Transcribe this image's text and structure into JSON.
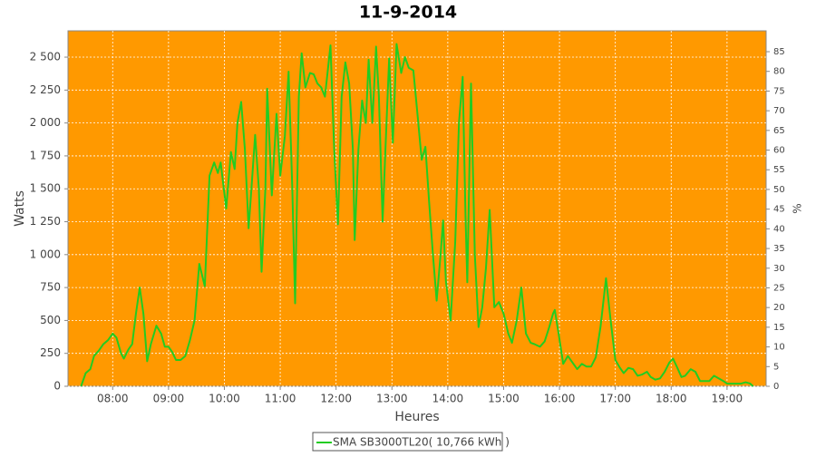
{
  "chart_data": {
    "type": "line",
    "title": "11-9-2014",
    "x_label": "Heures",
    "y_label": "Watts",
    "y2_label": "%",
    "xlim": [
      "07:12",
      "19:42"
    ],
    "xticks": [
      "08:00",
      "09:00",
      "10:00",
      "11:00",
      "12:00",
      "13:00",
      "14:00",
      "15:00",
      "16:00",
      "17:00",
      "18:00",
      "19:00"
    ],
    "ylim": [
      0,
      2700
    ],
    "yticks": [
      0,
      250,
      500,
      750,
      {
        "value": 1000,
        "label": "1 000"
      },
      {
        "value": 1250,
        "label": "1 250"
      },
      {
        "value": 1500,
        "label": "1 500"
      },
      {
        "value": 1750,
        "label": "1 750"
      },
      {
        "value": 2000,
        "label": "2 000"
      },
      {
        "value": 2250,
        "label": "2 250"
      },
      {
        "value": 2500,
        "label": "2 500"
      }
    ],
    "y2lim": [
      0,
      90.3
    ],
    "y2ticks": [
      0,
      5,
      10,
      15,
      20,
      25,
      30,
      35,
      40,
      45,
      50,
      55,
      60,
      65,
      70,
      75,
      80,
      85
    ],
    "grid": true,
    "legend": "bottom",
    "x": [
      "07:26",
      "07:31",
      "07:36",
      "07:40",
      "07:45",
      "07:50",
      "07:55",
      "08:00",
      "08:04",
      "08:09",
      "08:12",
      "08:17",
      "08:21",
      "08:25",
      "08:29",
      "08:33",
      "08:37",
      "08:41",
      "08:47",
      "08:52",
      "08:56",
      "09:00",
      "09:04",
      "09:08",
      "09:13",
      "09:18",
      "09:23",
      "09:28",
      "09:33",
      "09:39",
      "09:44",
      "09:49",
      "09:53",
      "09:56",
      "10:02",
      "10:07",
      "10:11",
      "10:14",
      "10:18",
      "10:22",
      "10:26",
      "10:29",
      "10:33",
      "10:37",
      "10:40",
      "10:44",
      "10:46",
      "10:51",
      "10:56",
      "11:00",
      "11:05",
      "11:09",
      "11:13",
      "11:16",
      "11:20",
      "11:23",
      "11:27",
      "11:32",
      "11:36",
      "11:40",
      "11:44",
      "11:48",
      "11:54",
      "11:58",
      "12:02",
      "12:06",
      "12:10",
      "12:14",
      "12:18",
      "12:20",
      "12:24",
      "12:28",
      "12:32",
      "12:35",
      "12:39",
      "12:43",
      "12:46",
      "12:50",
      "12:53",
      "12:57",
      "13:01",
      "13:05",
      "13:10",
      "13:14",
      "13:18",
      "13:23",
      "13:27",
      "13:32",
      "13:36",
      "13:40",
      "13:44",
      "13:48",
      "13:52",
      "13:55",
      "13:58",
      "14:03",
      "14:08",
      "14:12",
      "14:16",
      "14:19",
      "14:21",
      "14:25",
      "14:29",
      "14:33",
      "14:37",
      "14:41",
      "14:45",
      "14:50",
      "14:55",
      "15:00",
      "15:05",
      "15:09",
      "15:14",
      "15:19",
      "15:24",
      "15:29",
      "15:33",
      "15:39",
      "15:44",
      "15:49",
      "15:53",
      "15:55",
      "15:59",
      "16:04",
      "16:09",
      "16:14",
      "16:19",
      "16:24",
      "16:29",
      "16:34",
      "16:39",
      "16:44",
      "16:50",
      "16:55",
      "17:00",
      "17:05",
      "17:09",
      "17:14",
      "17:19",
      "17:24",
      "17:29",
      "17:34",
      "17:38",
      "17:43",
      "17:48",
      "17:53",
      "17:58",
      "18:02",
      "18:06",
      "18:11",
      "18:15",
      "18:21",
      "18:26",
      "18:31",
      "18:36",
      "18:41",
      "18:46",
      "18:51",
      "18:56",
      "19:00",
      "19:05",
      "19:10",
      "19:15",
      "19:20",
      "19:25",
      "19:28"
    ],
    "series": [
      {
        "name": "SMA SB3000TL20( 10,766 kWh )",
        "color": "#22cc22",
        "values": [
          0,
          100,
          130,
          230,
          270,
          320,
          350,
          400,
          370,
          250,
          210,
          280,
          320,
          550,
          750,
          550,
          190,
          320,
          460,
          400,
          300,
          300,
          260,
          200,
          200,
          230,
          350,
          500,
          930,
          760,
          1600,
          1700,
          1620,
          1700,
          1350,
          1780,
          1650,
          2000,
          2160,
          1800,
          1200,
          1500,
          1910,
          1500,
          870,
          1500,
          2260,
          1450,
          2070,
          1600,
          1900,
          2390,
          1500,
          630,
          2200,
          2530,
          2270,
          2380,
          2370,
          2300,
          2270,
          2200,
          2590,
          1800,
          1230,
          2200,
          2460,
          2300,
          1800,
          1110,
          1800,
          2170,
          2000,
          2480,
          2000,
          2580,
          2200,
          1250,
          1800,
          2490,
          1850,
          2600,
          2380,
          2500,
          2420,
          2400,
          2100,
          1720,
          1820,
          1400,
          1000,
          650,
          980,
          1260,
          800,
          500,
          1100,
          2000,
          2350,
          1300,
          790,
          2300,
          1000,
          450,
          600,
          900,
          1340,
          600,
          640,
          550,
          400,
          330,
          500,
          750,
          400,
          330,
          320,
          300,
          340,
          450,
          550,
          580,
          400,
          170,
          230,
          180,
          130,
          170,
          150,
          150,
          220,
          450,
          820,
          500,
          200,
          140,
          100,
          140,
          130,
          80,
          90,
          110,
          70,
          50,
          60,
          110,
          180,
          210,
          150,
          70,
          80,
          130,
          110,
          40,
          40,
          40,
          80,
          60,
          40,
          20,
          20,
          20,
          20,
          30,
          20,
          0
        ]
      }
    ]
  }
}
